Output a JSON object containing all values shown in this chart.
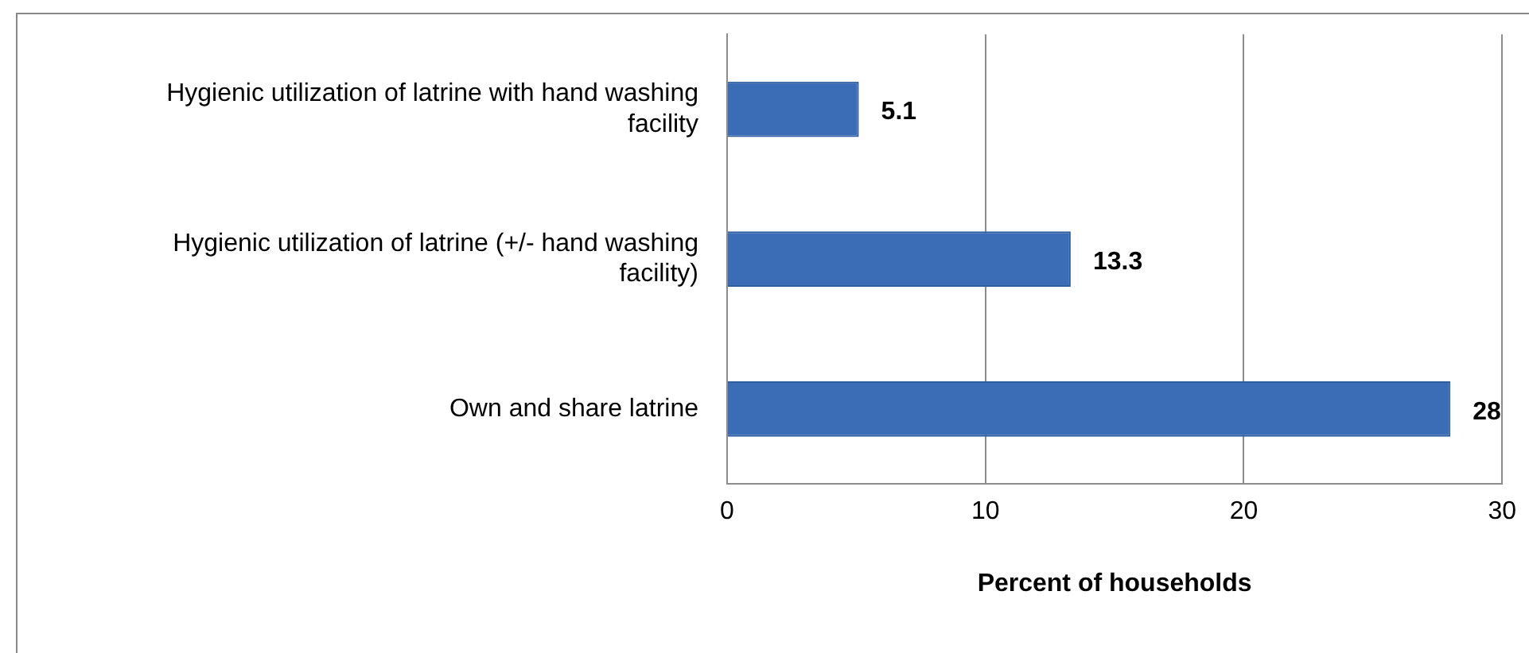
{
  "chart_data": {
    "type": "bar",
    "orientation": "horizontal",
    "xlabel": "Percent of households",
    "categories": [
      "Hygienic utilization of latrine with hand washing facility",
      "Hygienic utilization of latrine (+/- hand washing facility)",
      "Own and share latrine"
    ],
    "values": [
      5.1,
      13.3,
      28
    ],
    "color": "#3a6db5",
    "xlim": [
      0,
      30
    ],
    "xticks": [
      0,
      10,
      20,
      30
    ],
    "grid": "x",
    "data_labels": true,
    "legend": false
  }
}
